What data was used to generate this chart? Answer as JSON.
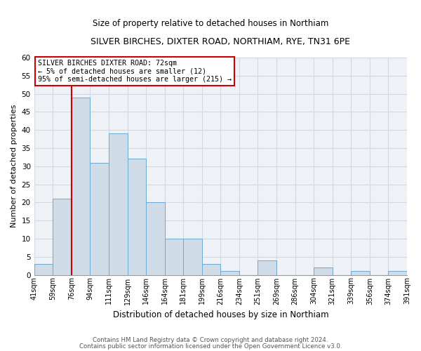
{
  "title": "SILVER BIRCHES, DIXTER ROAD, NORTHIAM, RYE, TN31 6PE",
  "subtitle": "Size of property relative to detached houses in Northiam",
  "xlabel": "Distribution of detached houses by size in Northiam",
  "ylabel": "Number of detached properties",
  "bin_labels": [
    "41sqm",
    "59sqm",
    "76sqm",
    "94sqm",
    "111sqm",
    "129sqm",
    "146sqm",
    "164sqm",
    "181sqm",
    "199sqm",
    "216sqm",
    "234sqm",
    "251sqm",
    "269sqm",
    "286sqm",
    "304sqm",
    "321sqm",
    "339sqm",
    "356sqm",
    "374sqm",
    "391sqm"
  ],
  "bar_values": [
    3,
    21,
    49,
    31,
    39,
    32,
    20,
    10,
    10,
    3,
    1,
    0,
    4,
    0,
    0,
    2,
    0,
    1,
    0,
    1
  ],
  "bar_color": "#cfdce8",
  "bar_edge_color": "#6aaad4",
  "ylim": [
    0,
    60
  ],
  "yticks": [
    0,
    5,
    10,
    15,
    20,
    25,
    30,
    35,
    40,
    45,
    50,
    55,
    60
  ],
  "property_line_color": "#cc0000",
  "annotation_title": "SILVER BIRCHES DIXTER ROAD: 72sqm",
  "annotation_line1": "← 5% of detached houses are smaller (12)",
  "annotation_line2": "95% of semi-detached houses are larger (215) →",
  "annotation_box_edgecolor": "#cc0000",
  "footer1": "Contains HM Land Registry data © Crown copyright and database right 2024.",
  "footer2": "Contains public sector information licensed under the Open Government Licence v3.0.",
  "background_color": "#eef2f6",
  "grid_color": "#d0d8e4"
}
